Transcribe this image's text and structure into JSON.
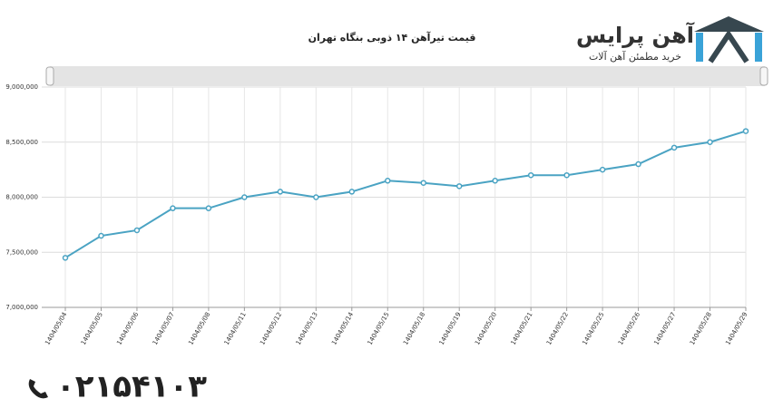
{
  "chart_data": {
    "type": "line",
    "title": "قیمت تیرآهن ۱۴ ذوبی بنگاه تهران",
    "categories": [
      "1404/05/04",
      "1404/05/05",
      "1404/05/06",
      "1404/05/07",
      "1404/05/08",
      "1404/05/11",
      "1404/05/12",
      "1404/05/13",
      "1404/05/14",
      "1404/05/15",
      "1404/05/18",
      "1404/05/19",
      "1404/05/20",
      "1404/05/21",
      "1404/05/22",
      "1404/05/25",
      "1404/05/26",
      "1404/05/27",
      "1404/05/28",
      "1404/05/29"
    ],
    "values": [
      7450000,
      7650000,
      7700000,
      7900000,
      7900000,
      8000000,
      8050000,
      8000000,
      8050000,
      8150000,
      8130000,
      8100000,
      8150000,
      8200000,
      8200000,
      8250000,
      8300000,
      8450000,
      8500000,
      8600000
    ],
    "color": "#4aa3c3",
    "ylim": [
      7000000,
      9000000
    ],
    "yticks": [
      {
        "value": 7000000,
        "label": "7,000,000"
      },
      {
        "value": 7500000,
        "label": "7,500,000"
      },
      {
        "value": 8000000,
        "label": "8,000,000"
      },
      {
        "value": 8500000,
        "label": "8,500,000"
      },
      {
        "value": 9000000,
        "label": "9,000,000"
      }
    ],
    "grid": true
  },
  "logo": {
    "name": "آهن پرایس",
    "tagline": "خرید مطمئن آهن آلات"
  },
  "phone": "۰۲۱۵۴۱۰۳"
}
